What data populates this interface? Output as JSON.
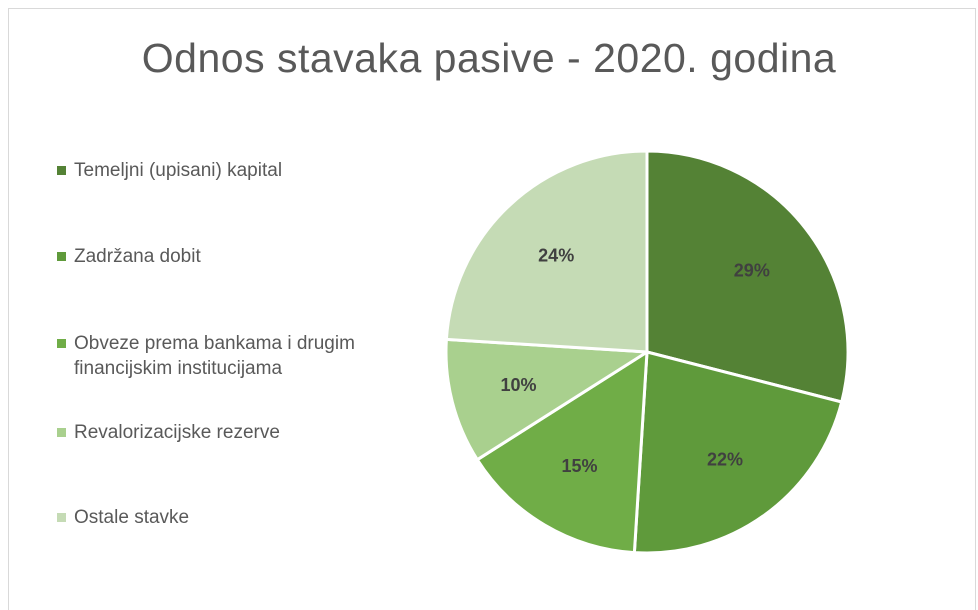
{
  "chart_data": {
    "type": "pie",
    "title": "Odnos stavaka pasive - 2020. godina",
    "slices": [
      {
        "label": "Temeljni (upisani) kapital",
        "value": 29,
        "display": "29%",
        "color": "#548235"
      },
      {
        "label": "Zadržana dobit",
        "value": 22,
        "display": "22%",
        "color": "#5f9a3b"
      },
      {
        "label": "Obveze prema bankama i drugim financijskim institucijama",
        "value": 15,
        "display": "15%",
        "color": "#70ad47"
      },
      {
        "label": "Revalorizacijske rezerve",
        "value": 10,
        "display": "10%",
        "color": "#a9d08e"
      },
      {
        "label": "Ostale stavke",
        "value": 24,
        "display": "24%",
        "color": "#c5dbb5"
      }
    ],
    "legend_position": "left",
    "start_angle": "12 o'clock",
    "direction": "clockwise"
  }
}
